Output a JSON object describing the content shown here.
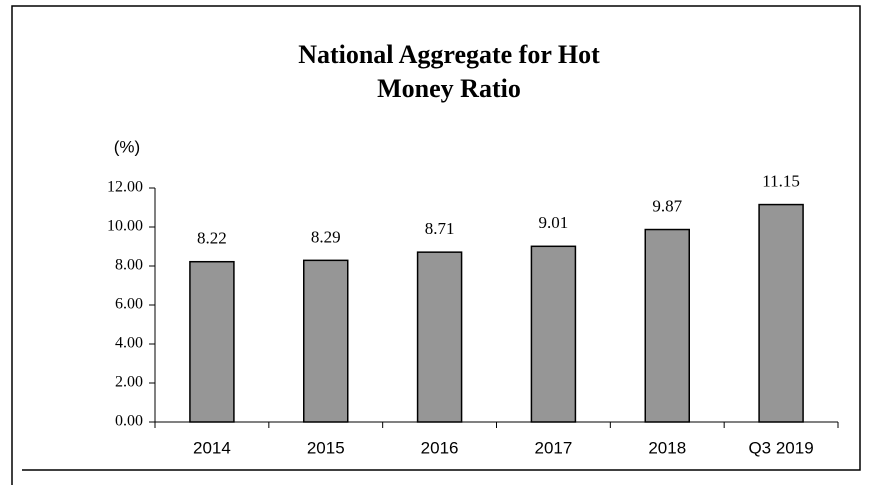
{
  "chart_data": {
    "type": "bar",
    "title": "National Aggregate for Hot Money Ratio",
    "y_label": "(%)",
    "categories": [
      "2014",
      "2015",
      "2016",
      "2017",
      "2018",
      "Q3 2019"
    ],
    "values": [
      8.22,
      8.29,
      8.71,
      9.01,
      9.87,
      11.15
    ],
    "color": "#969696",
    "ylim": [
      0,
      12
    ],
    "yticks": [
      {
        "value": 0,
        "label": "0.00"
      },
      {
        "value": 2,
        "label": "2.00"
      },
      {
        "value": 4,
        "label": "4.00"
      },
      {
        "value": 6,
        "label": "6.00"
      },
      {
        "value": 8,
        "label": "8.00"
      },
      {
        "value": 10,
        "label": "10.00"
      },
      {
        "value": 12,
        "label": "12.00"
      }
    ],
    "grid": false
  }
}
